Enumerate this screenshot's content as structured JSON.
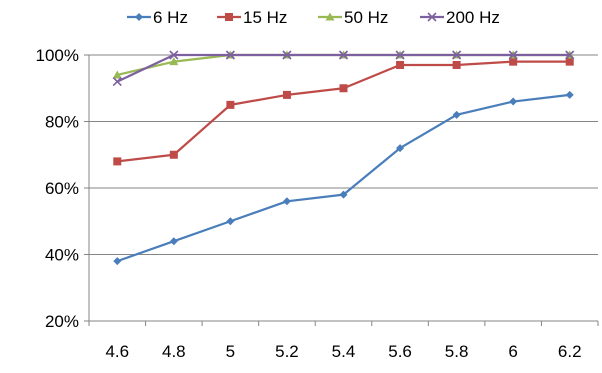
{
  "chart_data": {
    "type": "line",
    "title": "",
    "xlabel": "",
    "ylabel": "",
    "categories": [
      "4.6",
      "4.8",
      "5",
      "5.2",
      "5.4",
      "5.6",
      "5.8",
      "6",
      "6.2"
    ],
    "yticks": [
      "20%",
      "40%",
      "60%",
      "80%",
      "100%"
    ],
    "ylim": [
      20,
      100
    ],
    "grid": true,
    "legend": "top",
    "series": [
      {
        "name": "6 Hz",
        "color": "#4A7EBB",
        "marker": "diamond",
        "values": [
          38,
          44,
          50,
          56,
          58,
          72,
          82,
          86,
          88
        ]
      },
      {
        "name": "15 Hz",
        "color": "#BE4B48",
        "marker": "square",
        "values": [
          68,
          70,
          85,
          88,
          90,
          97,
          97,
          98,
          98
        ]
      },
      {
        "name": "50 Hz",
        "color": "#98B954",
        "marker": "triangle",
        "values": [
          94,
          98,
          100,
          100,
          100,
          100,
          100,
          100,
          100
        ]
      },
      {
        "name": "200 Hz",
        "color": "#7D60A0",
        "marker": "x",
        "values": [
          92,
          100,
          100,
          100,
          100,
          100,
          100,
          100,
          100
        ]
      }
    ]
  }
}
